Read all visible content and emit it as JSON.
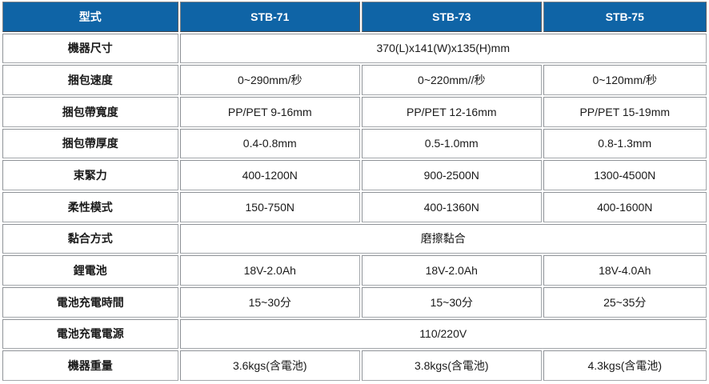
{
  "table": {
    "title_semantic": "strapping-tool-spec-comparison",
    "colors": {
      "header_bg": "#0f64a6",
      "header_text": "#ffffff",
      "cell_border": "#a3a7ab",
      "cell_bg": "#ffffff",
      "body_text": "#1a1a1a"
    },
    "header": {
      "col0": "型式",
      "models": [
        "STB-71",
        "STB-73",
        "STB-75"
      ]
    },
    "rows": [
      {
        "label": "機器尺寸",
        "merged": true,
        "value": "370(L)x141(W)x135(H)mm"
      },
      {
        "label": "捆包速度",
        "merged": false,
        "values": [
          "0~290mm/秒",
          "0~220mm//秒",
          "0~120mm/秒"
        ]
      },
      {
        "label": "捆包帶寬度",
        "merged": false,
        "values": [
          "PP/PET 9-16mm",
          "PP/PET 12-16mm",
          "PP/PET 15-19mm"
        ]
      },
      {
        "label": "捆包帶厚度",
        "merged": false,
        "values": [
          "0.4-0.8mm",
          "0.5-1.0mm",
          "0.8-1.3mm"
        ]
      },
      {
        "label": "束緊力",
        "merged": false,
        "values": [
          "400-1200N",
          "900-2500N",
          "1300-4500N"
        ]
      },
      {
        "label": "柔性模式",
        "merged": false,
        "values": [
          "150-750N",
          "400-1360N",
          "400-1600N"
        ]
      },
      {
        "label": "黏合方式",
        "merged": true,
        "value": "磨擦黏合"
      },
      {
        "label": "鋰電池",
        "merged": false,
        "values": [
          "18V-2.0Ah",
          "18V-2.0Ah",
          "18V-4.0Ah"
        ]
      },
      {
        "label": "電池充電時間",
        "merged": false,
        "values": [
          "15~30分",
          "15~30分",
          "25~35分"
        ]
      },
      {
        "label": "電池充電電源",
        "merged": true,
        "value": "110/220V"
      },
      {
        "label": "機器重量",
        "merged": false,
        "values": [
          "3.6kgs(含電池)",
          "3.8kgs(含電池)",
          "4.3kgs(含電池)"
        ]
      }
    ]
  }
}
